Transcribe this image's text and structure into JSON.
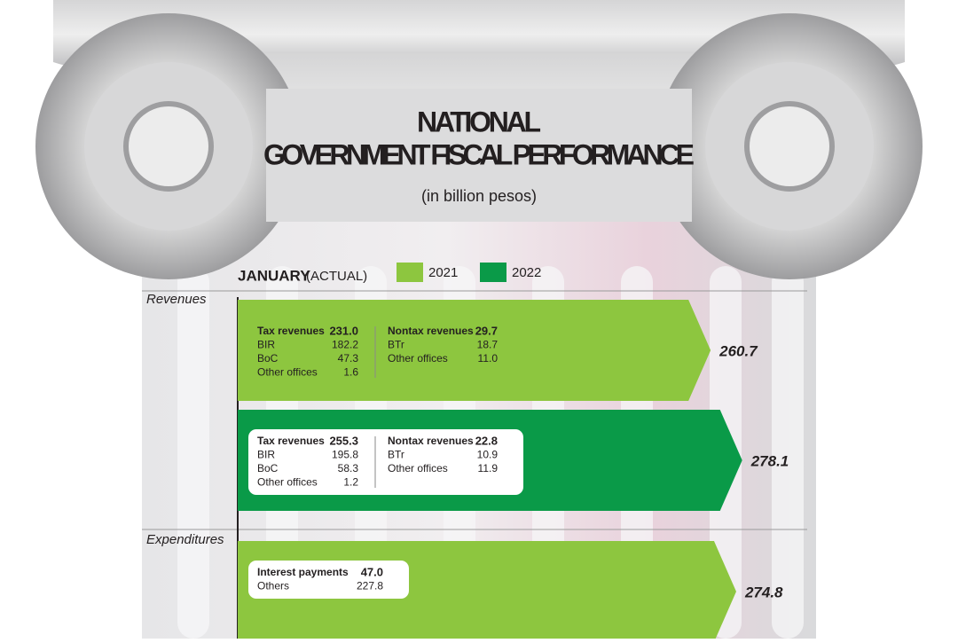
{
  "title_lines": [
    "NATIONAL",
    "GOVERNMENT FISCAL PERFORMANCE"
  ],
  "subtitle": "(in billion pesos)",
  "period": {
    "label": "JANUARY",
    "note": "(ACTUAL)"
  },
  "legend": [
    {
      "name": "2021",
      "color": "#8dc63f"
    },
    {
      "name": "2022",
      "color": "#0a9a48"
    }
  ],
  "sections": [
    {
      "label": "Revenues",
      "bars": [
        {
          "total": 260.7,
          "color": "#8dc63f",
          "boxed": false,
          "columns": [
            [
              {
                "label": "Tax revenues",
                "value": "231.0"
              },
              {
                "label": "BIR",
                "value": "182.2"
              },
              {
                "label": "BoC",
                "value": "47.3"
              },
              {
                "label": "Other offices",
                "value": "1.6"
              }
            ],
            [
              {
                "label": "Nontax revenues",
                "value": "29.7"
              },
              {
                "label": "BTr",
                "value": "18.7"
              },
              {
                "label": "Other offices",
                "value": "11.0"
              }
            ]
          ]
        },
        {
          "total": 278.1,
          "color": "#0a9a48",
          "boxed": true,
          "columns": [
            [
              {
                "label": "Tax revenues",
                "value": "255.3"
              },
              {
                "label": "BIR",
                "value": "195.8"
              },
              {
                "label": "BoC",
                "value": "58.3"
              },
              {
                "label": "Other offices",
                "value": "1.2"
              }
            ],
            [
              {
                "label": "Nontax revenues",
                "value": "22.8"
              },
              {
                "label": "BTr",
                "value": "10.9"
              },
              {
                "label": "Other offices",
                "value": "11.9"
              }
            ]
          ]
        }
      ]
    },
    {
      "label": "Expenditures",
      "bars": [
        {
          "total": 274.8,
          "color": "#8dc63f",
          "boxed": true,
          "columns": [
            [
              {
                "label": "Interest payments",
                "value": "47.0"
              },
              {
                "label": "Others",
                "value": "227.8"
              }
            ]
          ]
        }
      ]
    }
  ]
}
